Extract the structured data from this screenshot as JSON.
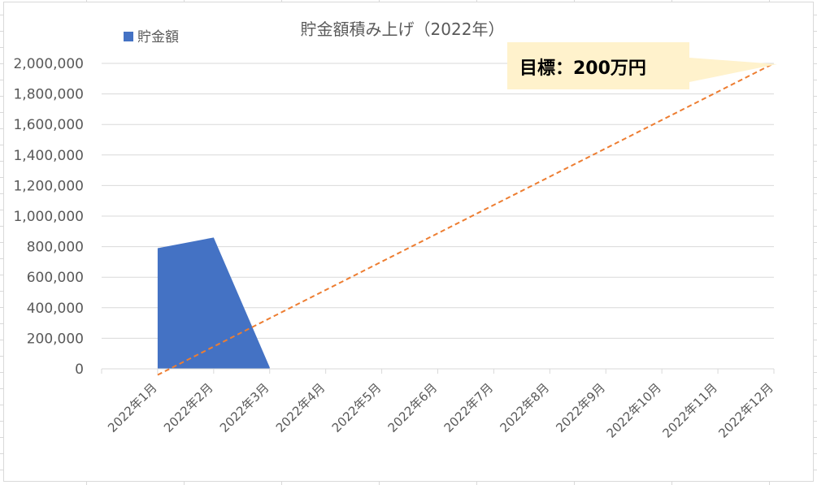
{
  "chart_data": {
    "type": "area",
    "title": "貯金額積み上げ（2022年）",
    "categories": [
      "2022年1月",
      "2022年2月",
      "2022年3月",
      "2022年4月",
      "2022年5月",
      "2022年6月",
      "2022年7月",
      "2022年8月",
      "2022年9月",
      "2022年10月",
      "2022年11月",
      "2022年12月"
    ],
    "series": [
      {
        "name": "貯金額",
        "values": [
          790000,
          860000,
          10000,
          null,
          null,
          null,
          null,
          null,
          null,
          null,
          null,
          null
        ]
      }
    ],
    "target_line": {
      "values": [
        -40000,
        2000000
      ]
    },
    "ylim": [
      0,
      2000000
    ],
    "yticks": [
      "0",
      "200,000",
      "400,000",
      "600,000",
      "800,000",
      "1,000,000",
      "1,200,000",
      "1,400,000",
      "1,600,000",
      "1,800,000",
      "2,000,000"
    ],
    "ytick_values": [
      0,
      200000,
      400000,
      600000,
      800000,
      1000000,
      1200000,
      1400000,
      1600000,
      1800000,
      2000000
    ],
    "grid": true,
    "legend_position": "top-left",
    "annotation": "目標：200万円",
    "colors": {
      "series": "#4472c4",
      "target": "#ed7d31",
      "callout_bg": "#fff2cc",
      "text": "#595959",
      "grid": "#d9d9d9"
    }
  }
}
